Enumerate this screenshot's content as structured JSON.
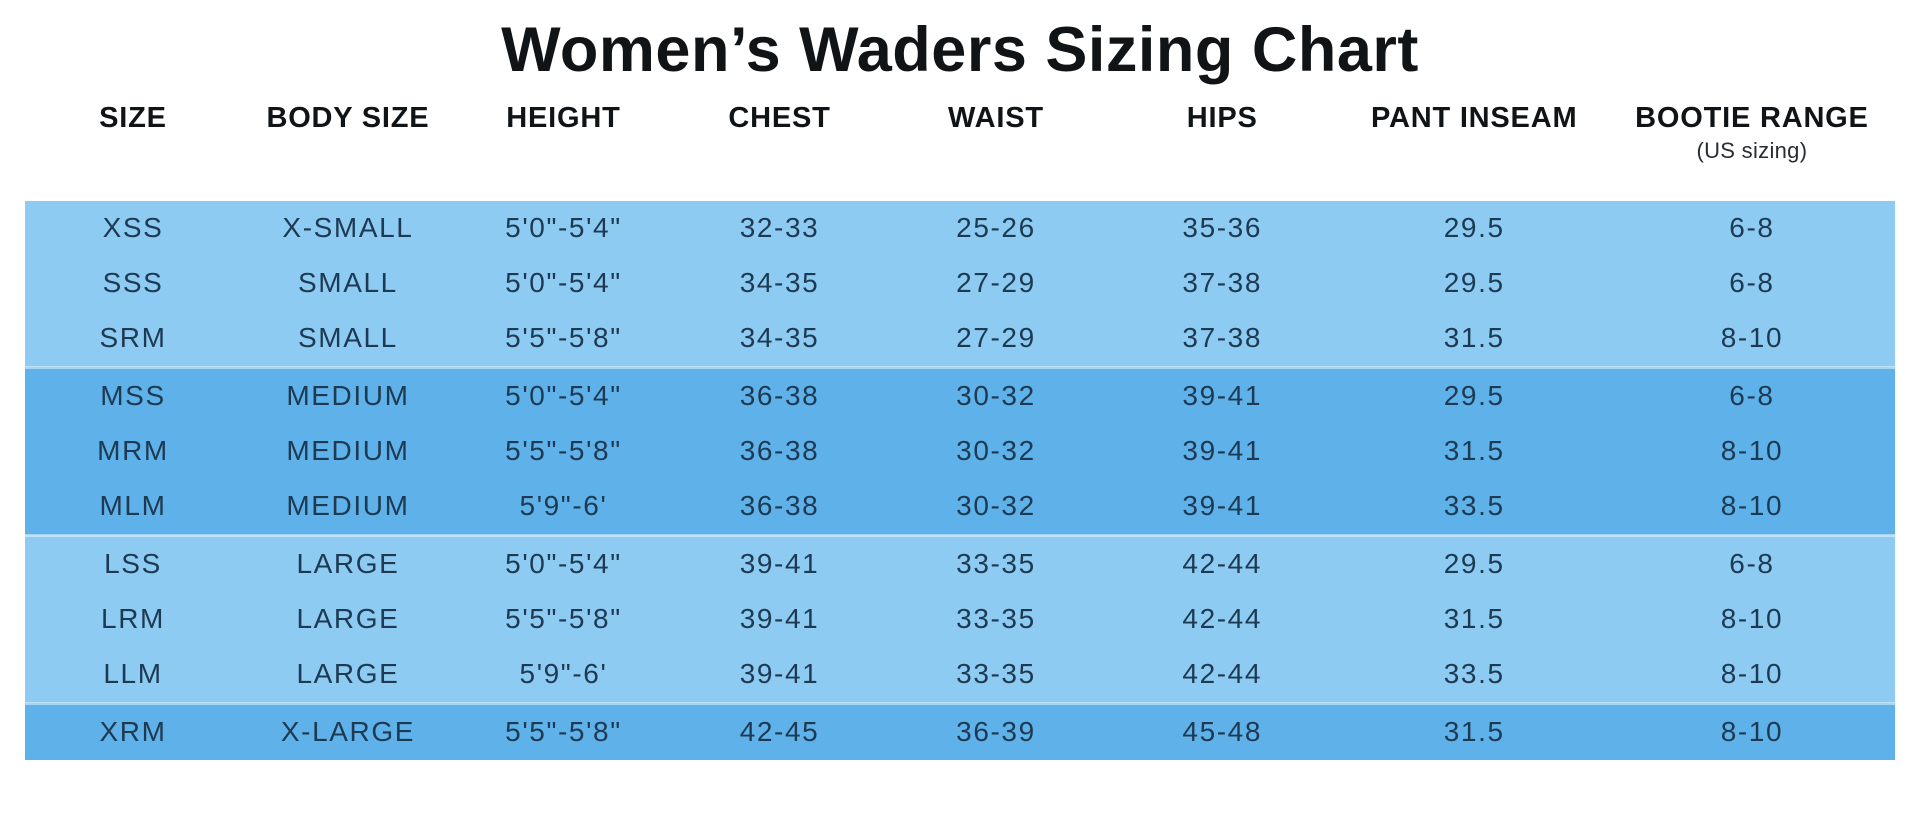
{
  "title": "Women’s Waders Sizing Chart",
  "colors": {
    "background": "#FFFFFF",
    "band_light": "#8DCBF2",
    "band_dark": "#5FB1E9",
    "cell_text": "#1E3A52",
    "heading_text": "#111416"
  },
  "chart_data": {
    "type": "table",
    "title": "Women’s Waders Sizing Chart",
    "columns": [
      "SIZE",
      "BODY SIZE",
      "HEIGHT",
      "CHEST",
      "WAIST",
      "HIPS",
      "PANT INSEAM",
      "BOOTIE RANGE"
    ],
    "bootie_range_note": "(US sizing)",
    "column_widths_pct": [
      11.55,
      11.44,
      11.61,
      11.5,
      11.65,
      12.55,
      14.4,
      15.3
    ],
    "rows": [
      [
        "XSS",
        "X-SMALL",
        "5'0\"-5'4\"",
        "32-33",
        "25-26",
        "35-36",
        "29.5",
        "6-8"
      ],
      [
        "SSS",
        "SMALL",
        "5'0\"-5'4\"",
        "34-35",
        "27-29",
        "37-38",
        "29.5",
        "6-8"
      ],
      [
        "SRM",
        "SMALL",
        "5'5\"-5'8\"",
        "34-35",
        "27-29",
        "37-38",
        "31.5",
        "8-10"
      ],
      [
        "MSS",
        "MEDIUM",
        "5'0\"-5'4\"",
        "36-38",
        "30-32",
        "39-41",
        "29.5",
        "6-8"
      ],
      [
        "MRM",
        "MEDIUM",
        "5'5\"-5'8\"",
        "36-38",
        "30-32",
        "39-41",
        "31.5",
        "8-10"
      ],
      [
        "MLM",
        "MEDIUM",
        "5'9\"-6'",
        "36-38",
        "30-32",
        "39-41",
        "33.5",
        "8-10"
      ],
      [
        "LSS",
        "LARGE",
        "5'0\"-5'4\"",
        "39-41",
        "33-35",
        "42-44",
        "29.5",
        "6-8"
      ],
      [
        "LRM",
        "LARGE",
        "5'5\"-5'8\"",
        "39-41",
        "33-35",
        "42-44",
        "31.5",
        "8-10"
      ],
      [
        "LLM",
        "LARGE",
        "5'9\"-6'",
        "39-41",
        "33-35",
        "42-44",
        "33.5",
        "8-10"
      ],
      [
        "XRM",
        "X-LARGE",
        "5'5\"-5'8\"",
        "42-45",
        "36-39",
        "45-48",
        "31.5",
        "8-10"
      ]
    ],
    "row_bands": [
      "light",
      "light",
      "light",
      "dark",
      "dark",
      "dark",
      "light",
      "light",
      "light",
      "dark"
    ]
  }
}
